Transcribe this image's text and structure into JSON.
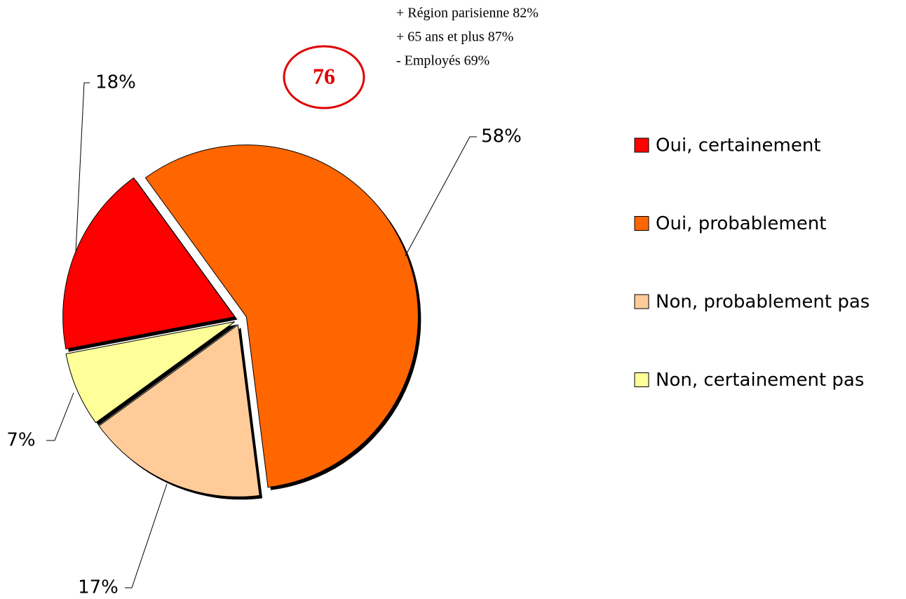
{
  "chart_data": {
    "type": "pie",
    "categories": [
      "Oui, certainement",
      "Oui, probablement",
      "Non, probablement pas",
      "Non, certainement pas"
    ],
    "values": [
      18,
      58,
      17,
      7
    ],
    "value_labels": [
      "18%",
      "58%",
      "17%",
      "7%"
    ],
    "colors": [
      "#ff0000",
      "#ff6600",
      "#ffcc99",
      "#ffff99"
    ],
    "highlight": 76,
    "annotations": [
      "+ Région parisienne 82%",
      "+ 65 ans et plus 87%",
      "- Employés 69%"
    ],
    "legend": "right"
  }
}
